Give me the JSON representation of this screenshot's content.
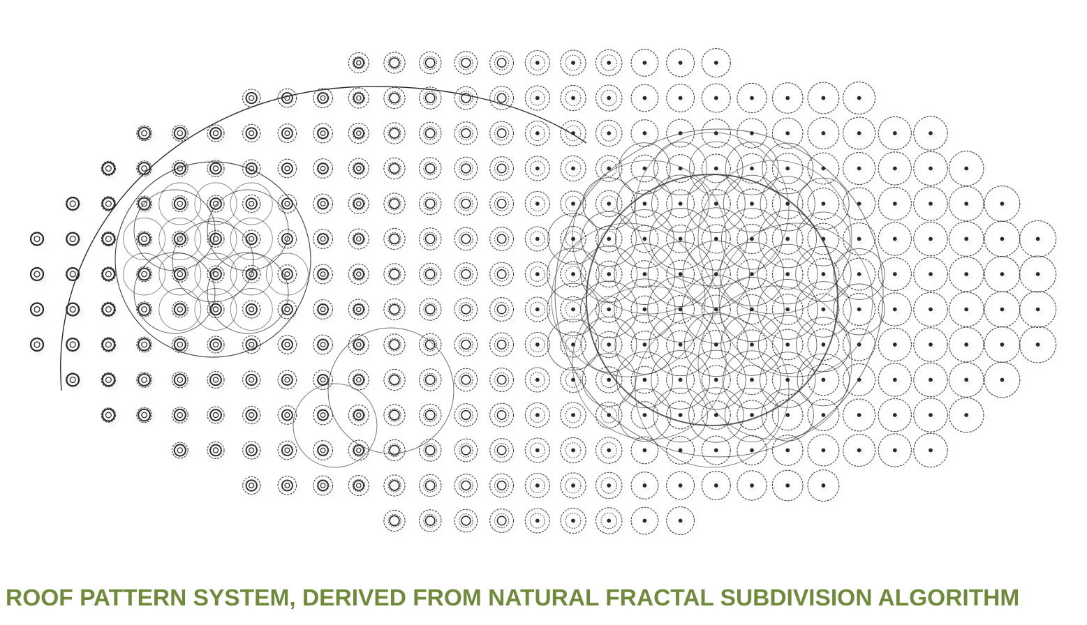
{
  "caption": {
    "text": "ROOF PATTERN SYSTEM, DERIVED FROM NATURAL FRACTAL SUBDIVISION ALGORITHM",
    "color": "#6f8a3a"
  },
  "pattern": {
    "stroke_color": "#2a2a2a",
    "shadow_color": "#9a9a9a",
    "style": "dashed concentric ring grid inside an ellipse, with overlapping large circular subdivision clusters"
  }
}
